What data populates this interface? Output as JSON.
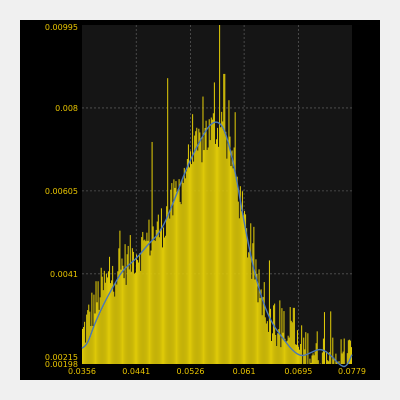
{
  "colors": {
    "background": "#000000",
    "plot_background": "#151515",
    "grid": "#555555",
    "bars": "#ddc808",
    "curve": "#4a78b8",
    "tick_text": "#e8c400"
  },
  "chart_data": {
    "type": "bar",
    "title": "",
    "xlabel": "",
    "ylabel": "",
    "xlim": [
      0.0356,
      0.0779
    ],
    "ylim": [
      0.00198,
      0.00995
    ],
    "x_ticks": [
      "0.0356",
      "0.0441",
      "0.0526",
      "0.061",
      "0.0695",
      "0.0779"
    ],
    "y_ticks": [
      "0.00198",
      "0.00215",
      "0.0041",
      "0.00605",
      "0.008",
      "0.00995"
    ],
    "grid": true,
    "bar_color": "bars",
    "curve_color": "curve",
    "histogram": {
      "bin_count": 260,
      "profile": [
        [
          0.0356,
          0.0026
        ],
        [
          0.037,
          0.0032
        ],
        [
          0.0385,
          0.0037
        ],
        [
          0.04,
          0.004
        ],
        [
          0.042,
          0.0043
        ],
        [
          0.0441,
          0.0046
        ],
        [
          0.046,
          0.0049
        ],
        [
          0.048,
          0.0052
        ],
        [
          0.05,
          0.0058
        ],
        [
          0.052,
          0.0066
        ],
        [
          0.054,
          0.0071
        ],
        [
          0.056,
          0.0075
        ],
        [
          0.0575,
          0.0076
        ],
        [
          0.059,
          0.0069
        ],
        [
          0.061,
          0.0053
        ],
        [
          0.063,
          0.0038
        ],
        [
          0.065,
          0.0031
        ],
        [
          0.067,
          0.0028
        ],
        [
          0.0695,
          0.0024
        ],
        [
          0.072,
          0.0023
        ],
        [
          0.074,
          0.0022
        ],
        [
          0.076,
          0.0021
        ],
        [
          0.0779,
          0.0022
        ]
      ],
      "spikes": [
        [
          0.0399,
          0.0045
        ],
        [
          0.0414,
          0.0047
        ],
        [
          0.0466,
          0.0072
        ],
        [
          0.049,
          0.0087
        ],
        [
          0.0495,
          0.006
        ],
        [
          0.0521,
          0.0068
        ],
        [
          0.0551,
          0.0077
        ],
        [
          0.0563,
          0.0086
        ],
        [
          0.0572,
          0.00995
        ],
        [
          0.0579,
          0.0088
        ],
        [
          0.0596,
          0.0079
        ],
        [
          0.0628,
          0.0041
        ],
        [
          0.0658,
          0.0034
        ],
        [
          0.0688,
          0.0033
        ],
        [
          0.0736,
          0.0032
        ],
        [
          0.0749,
          0.0026
        ]
      ]
    },
    "kde_curve": [
      [
        0.0356,
        0.00235
      ],
      [
        0.0365,
        0.00245
      ],
      [
        0.0375,
        0.0029
      ],
      [
        0.039,
        0.0034
      ],
      [
        0.0405,
        0.0038
      ],
      [
        0.042,
        0.0042
      ],
      [
        0.0441,
        0.00445
      ],
      [
        0.046,
        0.0048
      ],
      [
        0.048,
        0.0051
      ],
      [
        0.05,
        0.0058
      ],
      [
        0.052,
        0.0066
      ],
      [
        0.054,
        0.0072
      ],
      [
        0.0555,
        0.0076
      ],
      [
        0.0568,
        0.0077
      ],
      [
        0.058,
        0.0075
      ],
      [
        0.0595,
        0.0066
      ],
      [
        0.061,
        0.0053
      ],
      [
        0.0625,
        0.0042
      ],
      [
        0.064,
        0.0034
      ],
      [
        0.0655,
        0.0029
      ],
      [
        0.067,
        0.0026
      ],
      [
        0.0685,
        0.0023
      ],
      [
        0.07,
        0.00215
      ],
      [
        0.0715,
        0.00225
      ],
      [
        0.073,
        0.00235
      ],
      [
        0.0745,
        0.0022
      ],
      [
        0.076,
        0.00195
      ],
      [
        0.077,
        0.0019
      ],
      [
        0.0779,
        0.0022
      ]
    ]
  }
}
